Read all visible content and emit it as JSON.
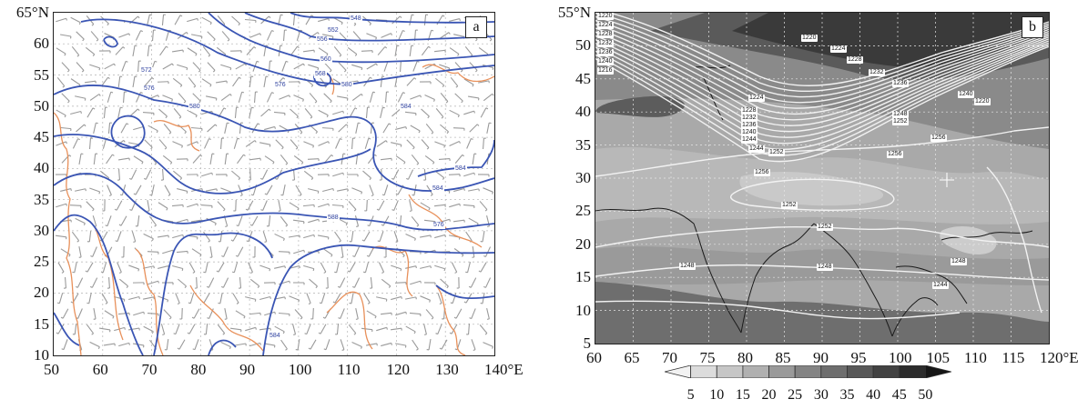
{
  "panel_a": {
    "tag": "a",
    "y_ticks": [
      "65°N",
      "60",
      "55",
      "50",
      "45",
      "40",
      "35",
      "30",
      "25",
      "20",
      "15",
      "10"
    ],
    "x_ticks": [
      "50",
      "60",
      "70",
      "80",
      "90",
      "100",
      "110",
      "120",
      "130",
      "140°E"
    ],
    "contour_labels": [
      "548",
      "552",
      "556",
      "560",
      "568",
      "572",
      "576",
      "576",
      "580",
      "580",
      "584",
      "584",
      "584",
      "588",
      "576",
      "584"
    ],
    "contour_color": "#3a55b4",
    "terrain_color": "#e8905a",
    "wind_barb_color": "#9a9a9a"
  },
  "panel_b": {
    "tag": "b",
    "y_ticks": [
      "55°N",
      "50",
      "45",
      "40",
      "35",
      "30",
      "25",
      "20",
      "15",
      "10",
      "5"
    ],
    "x_ticks": [
      "60",
      "65",
      "70",
      "75",
      "80",
      "85",
      "90",
      "95",
      "100",
      "105",
      "110",
      "115",
      "120°E"
    ],
    "contour_labels": [
      "1220",
      "1224",
      "1228",
      "1232",
      "1236",
      "1240",
      "1216",
      "1220",
      "1224",
      "1228",
      "1232",
      "1236",
      "1240",
      "1220",
      "1224",
      "1228",
      "1232",
      "1236",
      "1240",
      "1244",
      "1244",
      "1248",
      "1252",
      "1256",
      "1252",
      "1256",
      "1256",
      "1252",
      "1252",
      "1248",
      "1248",
      "1248",
      "1244"
    ],
    "colorbar_ticks": [
      "5",
      "10",
      "15",
      "20",
      "25",
      "30",
      "35",
      "40",
      "45",
      "50"
    ]
  }
}
